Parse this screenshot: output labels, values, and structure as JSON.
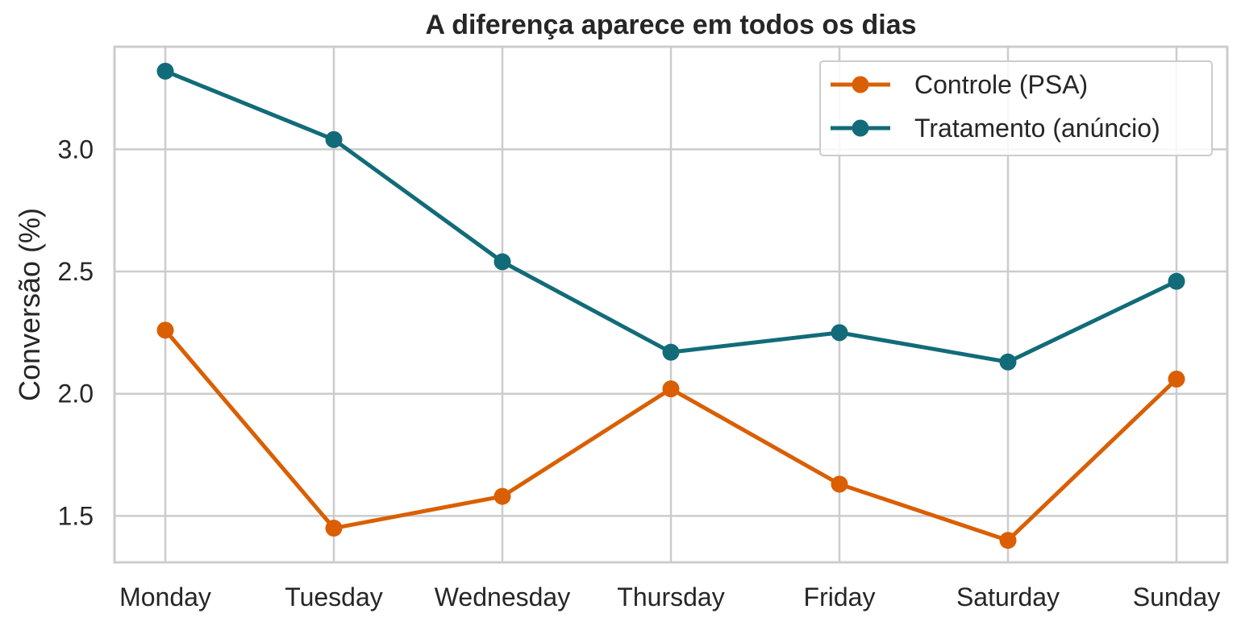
{
  "chart_data": {
    "type": "line",
    "title": "A diferença aparece em todos os dias",
    "xlabel": "",
    "ylabel": "Conversão (%)",
    "categories": [
      "Monday",
      "Tuesday",
      "Wednesday",
      "Thursday",
      "Friday",
      "Saturday",
      "Sunday"
    ],
    "series": [
      {
        "name": "Controle (PSA)",
        "color": "#d95f02",
        "values": [
          2.26,
          1.45,
          1.58,
          2.02,
          1.63,
          1.4,
          2.06
        ]
      },
      {
        "name": "Tratamento (anúncio)",
        "color": "#126b78",
        "values": [
          3.32,
          3.04,
          2.54,
          2.17,
          2.25,
          2.13,
          2.46
        ]
      }
    ],
    "ylim": [
      1.31,
      3.42
    ],
    "yticks": [
      1.5,
      2.0,
      2.5,
      3.0
    ],
    "ytick_labels": [
      "1.5",
      "2.0",
      "2.5",
      "3.0"
    ],
    "grid": true,
    "legend_position": "top-right"
  }
}
